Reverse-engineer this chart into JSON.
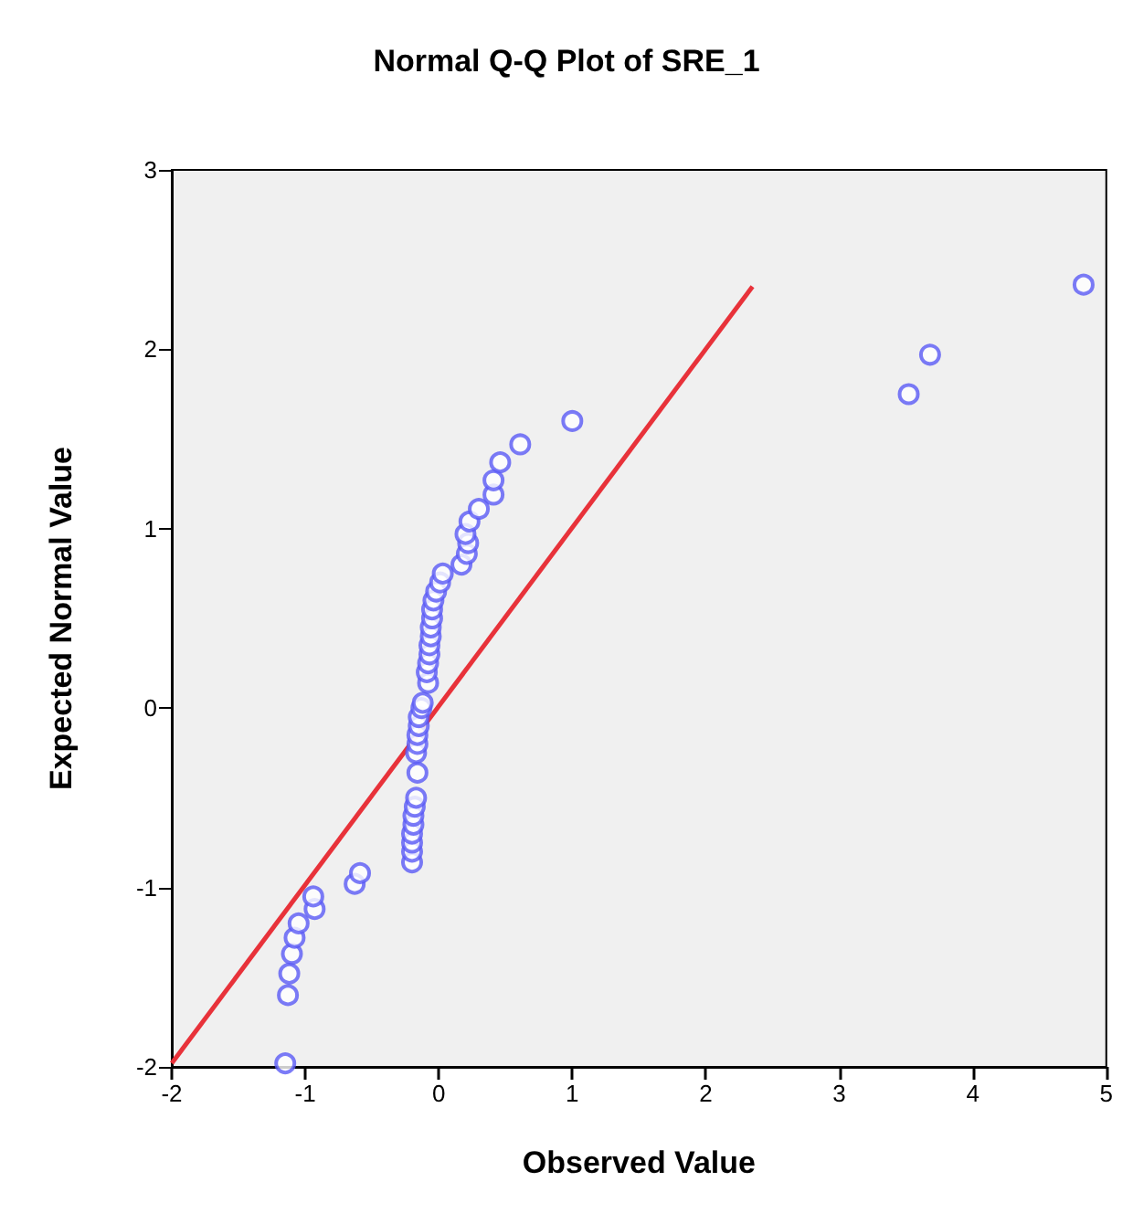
{
  "chart_data": {
    "type": "scatter",
    "title": "Normal Q-Q Plot of SRE_1",
    "xlabel": "Observed Value",
    "ylabel": "Expected Normal Value",
    "xlim": [
      -2,
      5
    ],
    "ylim": [
      -2,
      3
    ],
    "xticks": [
      -2,
      -1,
      0,
      1,
      2,
      3,
      4,
      5
    ],
    "yticks": [
      -2,
      -1,
      0,
      1,
      2,
      3
    ],
    "grid": false,
    "marker": "circle",
    "series": [
      {
        "color": "#5a5af5",
        "x": [
          -1.15,
          -1.13,
          -1.12,
          -1.1,
          -1.08,
          -1.05,
          -0.93,
          -0.94,
          -0.63,
          -0.59,
          -0.2,
          -0.2,
          -0.2,
          -0.2,
          -0.19,
          -0.19,
          -0.18,
          -0.17,
          -0.16,
          -0.17,
          -0.16,
          -0.16,
          -0.15,
          -0.15,
          -0.13,
          -0.12,
          -0.08,
          -0.09,
          -0.08,
          -0.07,
          -0.07,
          -0.06,
          -0.06,
          -0.05,
          -0.05,
          -0.04,
          -0.02,
          0.01,
          0.03,
          0.17,
          0.21,
          0.22,
          0.2,
          0.23,
          0.3,
          0.41,
          0.41,
          0.46,
          0.61,
          1.0,
          3.52,
          3.68,
          4.83
        ],
        "values": [
          -1.98,
          -1.6,
          -1.48,
          -1.37,
          -1.28,
          -1.2,
          -1.12,
          -1.05,
          -0.98,
          -0.92,
          -0.86,
          -0.8,
          -0.75,
          -0.7,
          -0.65,
          -0.6,
          -0.55,
          -0.5,
          -0.36,
          -0.25,
          -0.2,
          -0.15,
          -0.1,
          -0.05,
          0,
          0.03,
          0.14,
          0.2,
          0.25,
          0.3,
          0.35,
          0.4,
          0.45,
          0.5,
          0.55,
          0.6,
          0.65,
          0.7,
          0.75,
          0.8,
          0.86,
          0.92,
          0.97,
          1.04,
          1.11,
          1.19,
          1.27,
          1.37,
          1.47,
          1.6,
          1.75,
          1.97,
          2.36
        ]
      },
      {
        "type": "line",
        "color": "#e8323a",
        "marker": "none",
        "line_style": "solid",
        "x": [
          -2,
          2.35
        ],
        "values": [
          -1.98,
          2.35
        ]
      }
    ]
  }
}
